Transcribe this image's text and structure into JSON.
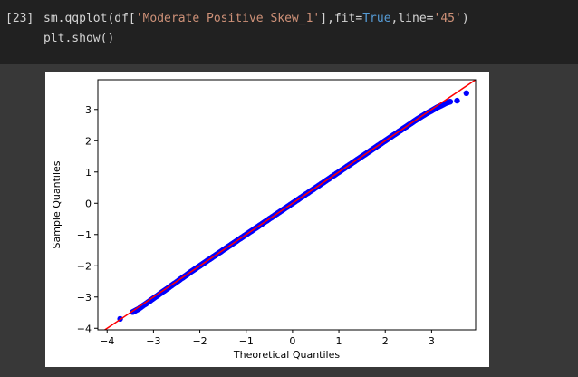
{
  "cell": {
    "prompt": "[23]",
    "line1_parts": [
      {
        "text": "sm.qqplot(df[",
        "kind": "plain"
      },
      {
        "text": "'Moderate Positive Skew_1'",
        "kind": "str"
      },
      {
        "text": "],fit=",
        "kind": "plain"
      },
      {
        "text": "True",
        "kind": "kw"
      },
      {
        "text": ",line=",
        "kind": "plain"
      },
      {
        "text": "'45'",
        "kind": "str"
      },
      {
        "text": ")",
        "kind": "plain"
      }
    ],
    "line2": "plt.show()"
  },
  "colors": {
    "page_bg": "#383838",
    "cell_bg": "#212121",
    "code_text": "#d4d4d4",
    "string": "#ce9178",
    "keyword": "#569cd6",
    "points": "#0000ff",
    "reference_line": "#ff0000"
  },
  "chart_data": {
    "type": "scatter",
    "title": "",
    "xlabel": "Theoretical Quantiles",
    "ylabel": "Sample Quantiles",
    "xlim": [
      -4.2,
      3.95
    ],
    "ylim": [
      -4.05,
      3.95
    ],
    "xticks": [
      -4,
      -3,
      -2,
      -1,
      0,
      1,
      2,
      3
    ],
    "yticks": [
      -4,
      -3,
      -2,
      -1,
      0,
      1,
      2,
      3
    ],
    "xtick_labels": [
      "−4",
      "−3",
      "−2",
      "−1",
      "0",
      "1",
      "2",
      "3"
    ],
    "ytick_labels": [
      "−4",
      "−3",
      "−2",
      "−1",
      "0",
      "1",
      "2",
      "3"
    ],
    "reference_line": {
      "label": "45",
      "from": [
        -4.2,
        -4.2
      ],
      "to": [
        3.95,
        3.95
      ]
    },
    "series": [
      {
        "x": [
          -3.72,
          -3.45,
          -3.32,
          -3.2,
          -3.1,
          -3.0,
          -2.9,
          -2.8,
          -2.7,
          -2.6,
          -2.5,
          -2.4,
          -2.3,
          -2.2,
          -2.1,
          -2.0,
          -1.9,
          -1.8,
          -1.7,
          -1.6,
          -1.5,
          -1.4,
          -1.3,
          -1.2,
          -1.1,
          -1.0,
          -0.9,
          -0.8,
          -0.7,
          -0.6,
          -0.5,
          -0.4,
          -0.3,
          -0.2,
          -0.1,
          0.0,
          0.1,
          0.2,
          0.3,
          0.4,
          0.5,
          0.6,
          0.7,
          0.8,
          0.9,
          1.0,
          1.1,
          1.2,
          1.3,
          1.4,
          1.5,
          1.6,
          1.7,
          1.8,
          1.9,
          2.0,
          2.1,
          2.2,
          2.3,
          2.4,
          2.5,
          2.6,
          2.7,
          2.8,
          2.9,
          3.0,
          3.1,
          3.2,
          3.3,
          3.4,
          3.55,
          3.75
        ],
        "y": [
          -3.7,
          -3.48,
          -3.38,
          -3.25,
          -3.15,
          -3.04,
          -2.94,
          -2.83,
          -2.73,
          -2.62,
          -2.52,
          -2.41,
          -2.31,
          -2.2,
          -2.1,
          -2.0,
          -1.9,
          -1.8,
          -1.7,
          -1.6,
          -1.5,
          -1.4,
          -1.3,
          -1.2,
          -1.1,
          -1.0,
          -0.9,
          -0.8,
          -0.7,
          -0.6,
          -0.5,
          -0.4,
          -0.3,
          -0.2,
          -0.1,
          0.0,
          0.1,
          0.2,
          0.3,
          0.4,
          0.5,
          0.6,
          0.7,
          0.8,
          0.9,
          1.0,
          1.1,
          1.2,
          1.3,
          1.4,
          1.5,
          1.6,
          1.7,
          1.8,
          1.9,
          2.0,
          2.1,
          2.2,
          2.3,
          2.4,
          2.5,
          2.6,
          2.7,
          2.79,
          2.88,
          2.96,
          3.05,
          3.12,
          3.2,
          3.25,
          3.28,
          3.52
        ]
      }
    ]
  }
}
